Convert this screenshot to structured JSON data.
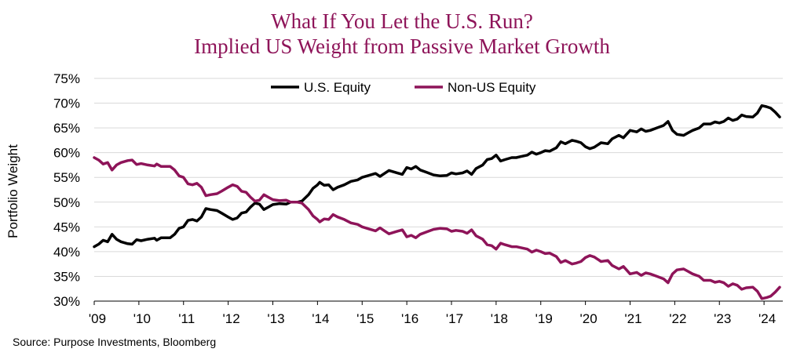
{
  "chart_data": {
    "type": "line",
    "title": "What If You Let the U.S. Run?",
    "subtitle": "Implied US Weight from Passive Market Growth",
    "xlabel": "",
    "ylabel": "Portfolio Weight",
    "ylim": [
      30,
      75
    ],
    "xlim": [
      2009,
      2024.42
    ],
    "y_ticks": [
      30,
      35,
      40,
      45,
      50,
      55,
      60,
      65,
      70,
      75
    ],
    "y_tick_labels": [
      "30%",
      "35%",
      "40%",
      "45%",
      "50%",
      "55%",
      "60%",
      "65%",
      "70%",
      "75%"
    ],
    "x_ticks": [
      2009,
      2010,
      2011,
      2012,
      2013,
      2014,
      2015,
      2016,
      2017,
      2018,
      2019,
      2020,
      2021,
      2022,
      2023,
      2024
    ],
    "x_tick_labels": [
      "'09",
      "'10",
      "'11",
      "'12",
      "'13",
      "'14",
      "'15",
      "'16",
      "'17",
      "'18",
      "'19",
      "'20",
      "'21",
      "'22",
      "'23",
      "'24"
    ],
    "grid": true,
    "legend": "top-center",
    "series": [
      {
        "name": "U.S. Equity",
        "color": "#000000",
        "points": [
          [
            2009.0,
            41.0
          ],
          [
            2009.1,
            41.5
          ],
          [
            2009.2,
            42.3
          ],
          [
            2009.3,
            42.0
          ],
          [
            2009.4,
            43.5
          ],
          [
            2009.5,
            42.5
          ],
          [
            2009.6,
            42.0
          ],
          [
            2009.75,
            41.6
          ],
          [
            2009.85,
            41.5
          ],
          [
            2009.95,
            42.4
          ],
          [
            2010.05,
            42.2
          ],
          [
            2010.2,
            42.5
          ],
          [
            2010.35,
            42.7
          ],
          [
            2010.4,
            42.3
          ],
          [
            2010.5,
            42.8
          ],
          [
            2010.7,
            42.8
          ],
          [
            2010.8,
            43.5
          ],
          [
            2010.9,
            44.7
          ],
          [
            2011.0,
            45.0
          ],
          [
            2011.1,
            46.3
          ],
          [
            2011.2,
            46.5
          ],
          [
            2011.3,
            46.2
          ],
          [
            2011.4,
            47.0
          ],
          [
            2011.5,
            48.7
          ],
          [
            2011.6,
            48.5
          ],
          [
            2011.75,
            48.3
          ],
          [
            2011.85,
            47.8
          ],
          [
            2012.0,
            47.0
          ],
          [
            2012.1,
            46.5
          ],
          [
            2012.2,
            46.8
          ],
          [
            2012.3,
            47.8
          ],
          [
            2012.4,
            48.0
          ],
          [
            2012.5,
            49.0
          ],
          [
            2012.6,
            49.8
          ],
          [
            2012.7,
            49.6
          ],
          [
            2012.8,
            48.5
          ],
          [
            2012.9,
            49.0
          ],
          [
            2013.0,
            49.5
          ],
          [
            2013.15,
            49.7
          ],
          [
            2013.3,
            49.6
          ],
          [
            2013.4,
            50.0
          ],
          [
            2013.55,
            50.0
          ],
          [
            2013.65,
            50.2
          ],
          [
            2013.8,
            51.5
          ],
          [
            2013.9,
            52.8
          ],
          [
            2014.0,
            53.5
          ],
          [
            2014.05,
            54.0
          ],
          [
            2014.15,
            53.4
          ],
          [
            2014.25,
            53.5
          ],
          [
            2014.35,
            52.5
          ],
          [
            2014.45,
            53.0
          ],
          [
            2014.6,
            53.5
          ],
          [
            2014.75,
            54.2
          ],
          [
            2014.9,
            54.5
          ],
          [
            2015.0,
            55.0
          ],
          [
            2015.15,
            55.4
          ],
          [
            2015.3,
            55.8
          ],
          [
            2015.4,
            55.2
          ],
          [
            2015.5,
            55.8
          ],
          [
            2015.6,
            56.4
          ],
          [
            2015.75,
            56.0
          ],
          [
            2015.9,
            55.6
          ],
          [
            2016.0,
            57.0
          ],
          [
            2016.1,
            56.7
          ],
          [
            2016.2,
            57.2
          ],
          [
            2016.3,
            56.5
          ],
          [
            2016.45,
            56.0
          ],
          [
            2016.6,
            55.5
          ],
          [
            2016.75,
            55.3
          ],
          [
            2016.9,
            55.4
          ],
          [
            2017.0,
            55.9
          ],
          [
            2017.1,
            55.7
          ],
          [
            2017.25,
            55.9
          ],
          [
            2017.35,
            56.3
          ],
          [
            2017.45,
            55.6
          ],
          [
            2017.55,
            56.8
          ],
          [
            2017.7,
            57.5
          ],
          [
            2017.8,
            58.6
          ],
          [
            2017.9,
            58.8
          ],
          [
            2018.0,
            59.5
          ],
          [
            2018.1,
            58.3
          ],
          [
            2018.2,
            58.6
          ],
          [
            2018.35,
            59.0
          ],
          [
            2018.45,
            59.0
          ],
          [
            2018.55,
            59.2
          ],
          [
            2018.7,
            59.5
          ],
          [
            2018.8,
            60.1
          ],
          [
            2018.9,
            59.7
          ],
          [
            2019.0,
            60.0
          ],
          [
            2019.1,
            60.4
          ],
          [
            2019.2,
            60.3
          ],
          [
            2019.35,
            61.0
          ],
          [
            2019.45,
            62.2
          ],
          [
            2019.55,
            61.8
          ],
          [
            2019.7,
            62.5
          ],
          [
            2019.8,
            62.3
          ],
          [
            2019.9,
            62.0
          ],
          [
            2020.0,
            61.2
          ],
          [
            2020.1,
            60.8
          ],
          [
            2020.2,
            61.1
          ],
          [
            2020.35,
            62.0
          ],
          [
            2020.5,
            61.8
          ],
          [
            2020.6,
            62.8
          ],
          [
            2020.75,
            63.5
          ],
          [
            2020.85,
            63.0
          ],
          [
            2021.0,
            64.5
          ],
          [
            2021.15,
            64.2
          ],
          [
            2021.25,
            64.8
          ],
          [
            2021.35,
            64.3
          ],
          [
            2021.45,
            64.5
          ],
          [
            2021.6,
            65.0
          ],
          [
            2021.75,
            65.5
          ],
          [
            2021.85,
            66.3
          ],
          [
            2021.95,
            64.5
          ],
          [
            2022.05,
            63.7
          ],
          [
            2022.2,
            63.5
          ],
          [
            2022.3,
            64.0
          ],
          [
            2022.4,
            64.5
          ],
          [
            2022.55,
            65.0
          ],
          [
            2022.65,
            65.8
          ],
          [
            2022.8,
            65.8
          ],
          [
            2022.9,
            66.2
          ],
          [
            2023.0,
            66.0
          ],
          [
            2023.1,
            66.3
          ],
          [
            2023.2,
            67.0
          ],
          [
            2023.3,
            66.5
          ],
          [
            2023.4,
            66.8
          ],
          [
            2023.5,
            67.6
          ],
          [
            2023.6,
            67.3
          ],
          [
            2023.75,
            67.2
          ],
          [
            2023.85,
            68.0
          ],
          [
            2023.95,
            69.5
          ],
          [
            2024.05,
            69.3
          ],
          [
            2024.15,
            69.0
          ],
          [
            2024.25,
            68.2
          ],
          [
            2024.35,
            67.2
          ]
        ]
      },
      {
        "name": "Non-US Equity",
        "color": "#8e1459",
        "points": [
          [
            2009.0,
            59.0
          ],
          [
            2009.1,
            58.5
          ],
          [
            2009.2,
            57.7
          ],
          [
            2009.3,
            58.0
          ],
          [
            2009.4,
            56.5
          ],
          [
            2009.5,
            57.5
          ],
          [
            2009.6,
            58.0
          ],
          [
            2009.75,
            58.4
          ],
          [
            2009.85,
            58.5
          ],
          [
            2009.95,
            57.6
          ],
          [
            2010.05,
            57.8
          ],
          [
            2010.2,
            57.5
          ],
          [
            2010.35,
            57.3
          ],
          [
            2010.4,
            57.7
          ],
          [
            2010.5,
            57.2
          ],
          [
            2010.7,
            57.2
          ],
          [
            2010.8,
            56.5
          ],
          [
            2010.9,
            55.3
          ],
          [
            2011.0,
            55.0
          ],
          [
            2011.1,
            53.7
          ],
          [
            2011.2,
            53.5
          ],
          [
            2011.3,
            53.8
          ],
          [
            2011.4,
            53.0
          ],
          [
            2011.5,
            51.3
          ],
          [
            2011.6,
            51.5
          ],
          [
            2011.75,
            51.7
          ],
          [
            2011.85,
            52.2
          ],
          [
            2012.0,
            53.0
          ],
          [
            2012.1,
            53.5
          ],
          [
            2012.2,
            53.2
          ],
          [
            2012.3,
            52.2
          ],
          [
            2012.4,
            52.0
          ],
          [
            2012.5,
            51.0
          ],
          [
            2012.6,
            50.2
          ],
          [
            2012.7,
            50.4
          ],
          [
            2012.8,
            51.5
          ],
          [
            2012.9,
            51.0
          ],
          [
            2013.0,
            50.5
          ],
          [
            2013.15,
            50.3
          ],
          [
            2013.3,
            50.4
          ],
          [
            2013.4,
            50.0
          ],
          [
            2013.55,
            50.0
          ],
          [
            2013.65,
            49.8
          ],
          [
            2013.8,
            48.5
          ],
          [
            2013.9,
            47.2
          ],
          [
            2014.0,
            46.5
          ],
          [
            2014.05,
            46.0
          ],
          [
            2014.15,
            46.6
          ],
          [
            2014.25,
            46.5
          ],
          [
            2014.35,
            47.5
          ],
          [
            2014.45,
            47.0
          ],
          [
            2014.6,
            46.5
          ],
          [
            2014.75,
            45.8
          ],
          [
            2014.9,
            45.5
          ],
          [
            2015.0,
            45.0
          ],
          [
            2015.15,
            44.6
          ],
          [
            2015.3,
            44.2
          ],
          [
            2015.4,
            44.8
          ],
          [
            2015.5,
            44.2
          ],
          [
            2015.6,
            43.6
          ],
          [
            2015.75,
            44.0
          ],
          [
            2015.9,
            44.4
          ],
          [
            2016.0,
            43.0
          ],
          [
            2016.1,
            43.3
          ],
          [
            2016.2,
            42.8
          ],
          [
            2016.3,
            43.5
          ],
          [
            2016.45,
            44.0
          ],
          [
            2016.6,
            44.5
          ],
          [
            2016.75,
            44.7
          ],
          [
            2016.9,
            44.6
          ],
          [
            2017.0,
            44.1
          ],
          [
            2017.1,
            44.3
          ],
          [
            2017.25,
            44.1
          ],
          [
            2017.35,
            43.7
          ],
          [
            2017.45,
            44.4
          ],
          [
            2017.55,
            43.2
          ],
          [
            2017.7,
            42.5
          ],
          [
            2017.8,
            41.4
          ],
          [
            2017.9,
            41.2
          ],
          [
            2018.0,
            40.5
          ],
          [
            2018.1,
            41.7
          ],
          [
            2018.2,
            41.4
          ],
          [
            2018.35,
            41.0
          ],
          [
            2018.45,
            41.0
          ],
          [
            2018.55,
            40.8
          ],
          [
            2018.7,
            40.5
          ],
          [
            2018.8,
            39.9
          ],
          [
            2018.9,
            40.3
          ],
          [
            2019.0,
            40.0
          ],
          [
            2019.1,
            39.6
          ],
          [
            2019.2,
            39.7
          ],
          [
            2019.35,
            39.0
          ],
          [
            2019.45,
            37.8
          ],
          [
            2019.55,
            38.2
          ],
          [
            2019.7,
            37.5
          ],
          [
            2019.8,
            37.7
          ],
          [
            2019.9,
            38.0
          ],
          [
            2020.0,
            38.8
          ],
          [
            2020.1,
            39.2
          ],
          [
            2020.2,
            38.9
          ],
          [
            2020.35,
            38.0
          ],
          [
            2020.5,
            38.2
          ],
          [
            2020.6,
            37.2
          ],
          [
            2020.75,
            36.5
          ],
          [
            2020.85,
            37.0
          ],
          [
            2021.0,
            35.5
          ],
          [
            2021.15,
            35.8
          ],
          [
            2021.25,
            35.2
          ],
          [
            2021.35,
            35.7
          ],
          [
            2021.45,
            35.5
          ],
          [
            2021.6,
            35.0
          ],
          [
            2021.75,
            34.5
          ],
          [
            2021.85,
            33.7
          ],
          [
            2021.95,
            35.5
          ],
          [
            2022.05,
            36.3
          ],
          [
            2022.2,
            36.5
          ],
          [
            2022.3,
            36.0
          ],
          [
            2022.4,
            35.5
          ],
          [
            2022.55,
            35.0
          ],
          [
            2022.65,
            34.2
          ],
          [
            2022.8,
            34.2
          ],
          [
            2022.9,
            33.8
          ],
          [
            2023.0,
            34.0
          ],
          [
            2023.1,
            33.7
          ],
          [
            2023.2,
            33.0
          ],
          [
            2023.3,
            33.5
          ],
          [
            2023.4,
            33.2
          ],
          [
            2023.5,
            32.4
          ],
          [
            2023.6,
            32.7
          ],
          [
            2023.75,
            32.8
          ],
          [
            2023.85,
            32.0
          ],
          [
            2023.95,
            30.5
          ],
          [
            2024.05,
            30.7
          ],
          [
            2024.15,
            31.0
          ],
          [
            2024.25,
            31.8
          ],
          [
            2024.35,
            32.8
          ]
        ]
      }
    ]
  },
  "footer": {
    "source": "Source: Purpose Investments, Bloomberg"
  }
}
